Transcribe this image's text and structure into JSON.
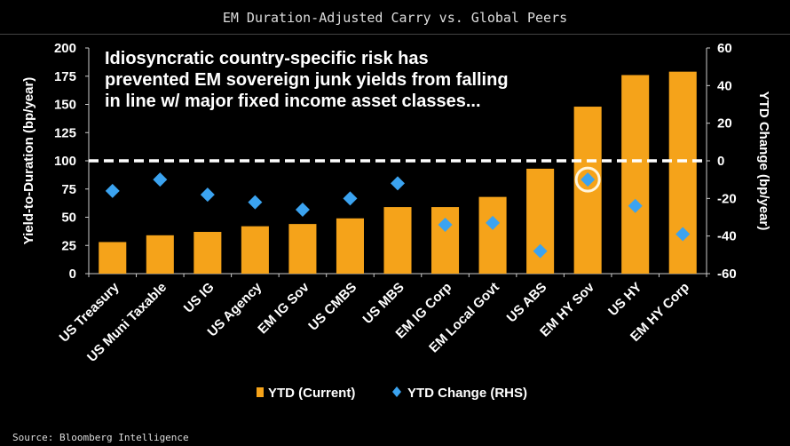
{
  "title": "EM Duration-Adjusted Carry vs. Global Peers",
  "source": "Source: Bloomberg Intelligence",
  "chart_data": {
    "type": "bar",
    "annotation": "Idiosyncratic country-specific risk has prevented EM sovereign junk yields from falling in line w/ major fixed income asset classes...",
    "annotation_lines": [
      "Idiosyncratic country-specific risk has",
      "prevented EM sovereign junk yields from falling",
      "in line w/ major fixed income asset classes..."
    ],
    "categories": [
      "US Treasury",
      "US Muni Taxable",
      "US IG",
      "US Agency",
      "EM IG Sov",
      "US CMBS",
      "US MBS",
      "EM IG Corp",
      "EM Local Govt",
      "US ABS",
      "EM HY Sov",
      "US HY",
      "EM HY Corp"
    ],
    "series": [
      {
        "name": "YTD (Current)",
        "type": "bar",
        "axis": "left",
        "color": "#f5a31a",
        "values": [
          28,
          34,
          37,
          42,
          44,
          49,
          59,
          59,
          68,
          93,
          148,
          176,
          179
        ]
      },
      {
        "name": "YTD Change (RHS)",
        "type": "scatter",
        "axis": "right",
        "color": "#3ba3f0",
        "values": [
          -16,
          -10,
          -18,
          -22,
          -26,
          -20,
          -12,
          -34,
          -33,
          -48,
          -10,
          -24,
          -39
        ]
      }
    ],
    "ylabel": "Yield-to-Duration (bp/year)",
    "ylim": [
      0,
      200
    ],
    "yticks": [
      0,
      25,
      50,
      75,
      100,
      125,
      150,
      175,
      200
    ],
    "y2label": "YTD Change (bp/year)",
    "y2lim": [
      -60,
      60
    ],
    "y2ticks": [
      -60,
      -40,
      -20,
      0,
      20,
      40,
      60
    ],
    "reference_line": {
      "left_value": 100,
      "right_value": 0,
      "style": "dashed",
      "color": "#ffffff"
    },
    "highlight": "EM HY Sov",
    "legend_position": "bottom",
    "grid": false
  }
}
